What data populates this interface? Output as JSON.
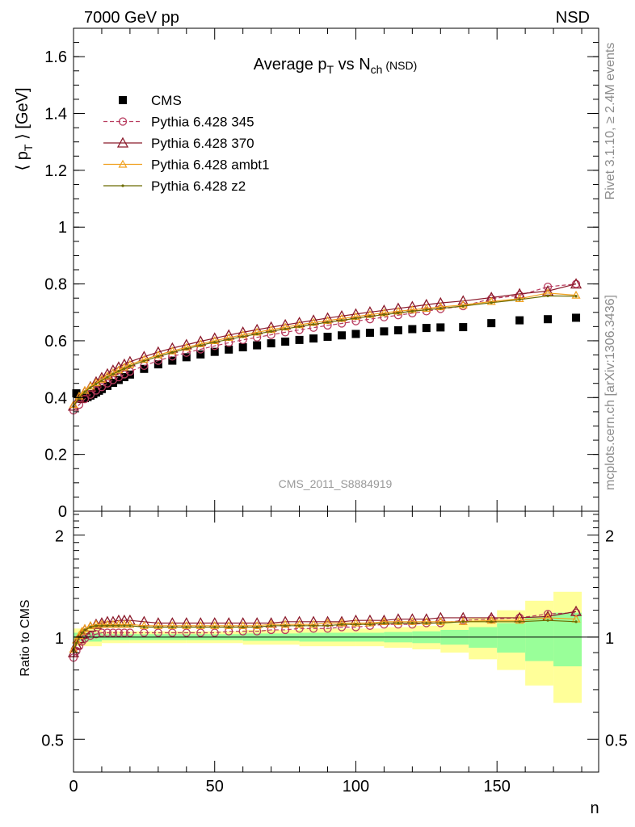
{
  "header": {
    "left": "7000 GeV pp",
    "right": "NSD"
  },
  "side_text": {
    "rivet": "Rivet 3.1.10, ≥ 2.4M events",
    "mcplots": "mcplots.cern.ch [arXiv:1306.3436]"
  },
  "chart_data": [
    {
      "type": "scatter",
      "title": "Average p_T vs N_ch (NSD)",
      "title_parts": {
        "main": "Average p",
        "sub1": "T",
        "mid": " vs N",
        "sub2": "ch",
        "tail": " (NSD)"
      },
      "ylabel": "⟨ p_T ⟩ [GeV]",
      "ylabel_parts": {
        "open": "⟨ p",
        "sub": "T",
        "close": " ⟩ [GeV]"
      },
      "xlabel": "n",
      "watermark": "CMS_2011_S8884919",
      "xlim": [
        0,
        186
      ],
      "ylim": [
        0,
        1.7
      ],
      "yticks": [
        "0",
        "0.2",
        "0.4",
        "0.6",
        "0.8",
        "1",
        "1.2",
        "1.4",
        "1.6"
      ],
      "xticks": [
        "0",
        "50",
        "100",
        "150"
      ],
      "legend_position": "top-left",
      "series": [
        {
          "name": "CMS",
          "color": "#000000",
          "marker": "filled-square",
          "x": [
            1,
            2,
            3,
            4,
            5,
            6,
            7,
            8,
            9,
            10,
            12,
            14,
            16,
            18,
            20,
            25,
            30,
            35,
            40,
            45,
            50,
            55,
            60,
            65,
            70,
            75,
            80,
            85,
            90,
            95,
            100,
            105,
            110,
            115,
            120,
            125,
            130,
            138,
            148,
            158,
            168,
            178
          ],
          "y": [
            0.415,
            0.4,
            0.395,
            0.398,
            0.402,
            0.407,
            0.412,
            0.418,
            0.424,
            0.43,
            0.441,
            0.452,
            0.462,
            0.472,
            0.481,
            0.501,
            0.517,
            0.53,
            0.542,
            0.552,
            0.561,
            0.569,
            0.577,
            0.584,
            0.591,
            0.597,
            0.603,
            0.608,
            0.614,
            0.619,
            0.624,
            0.628,
            0.633,
            0.637,
            0.641,
            0.645,
            0.647,
            0.648,
            0.662,
            0.672,
            0.676,
            0.681
          ]
        },
        {
          "name": "Pythia 6.428 345",
          "color": "#b83b5e",
          "marker": "open-circle",
          "dashed": true,
          "x": [
            0,
            2,
            4,
            6,
            8,
            10,
            12,
            14,
            16,
            18,
            20,
            25,
            30,
            35,
            40,
            45,
            50,
            55,
            60,
            65,
            70,
            75,
            80,
            85,
            90,
            95,
            100,
            105,
            110,
            115,
            120,
            125,
            130,
            138,
            148,
            158,
            168,
            178
          ],
          "y": [
            0.355,
            0.375,
            0.395,
            0.41,
            0.425,
            0.437,
            0.45,
            0.462,
            0.472,
            0.482,
            0.492,
            0.512,
            0.53,
            0.545,
            0.558,
            0.57,
            0.582,
            0.593,
            0.603,
            0.612,
            0.621,
            0.63,
            0.638,
            0.646,
            0.654,
            0.661,
            0.669,
            0.676,
            0.683,
            0.69,
            0.697,
            0.704,
            0.712,
            0.722,
            0.748,
            0.76,
            0.79,
            0.8
          ]
        },
        {
          "name": "Pythia 6.428 370",
          "color": "#8b1a2b",
          "marker": "open-triangle",
          "x": [
            0,
            2,
            4,
            6,
            8,
            10,
            12,
            14,
            16,
            18,
            20,
            25,
            30,
            35,
            40,
            45,
            50,
            55,
            60,
            65,
            70,
            75,
            80,
            85,
            90,
            95,
            100,
            105,
            110,
            115,
            120,
            125,
            130,
            138,
            148,
            158,
            168,
            178
          ],
          "y": [
            0.37,
            0.398,
            0.42,
            0.438,
            0.455,
            0.47,
            0.483,
            0.496,
            0.507,
            0.517,
            0.526,
            0.544,
            0.56,
            0.574,
            0.586,
            0.598,
            0.609,
            0.62,
            0.63,
            0.639,
            0.648,
            0.656,
            0.664,
            0.672,
            0.68,
            0.687,
            0.694,
            0.701,
            0.707,
            0.714,
            0.72,
            0.727,
            0.733,
            0.74,
            0.752,
            0.765,
            0.775,
            0.8
          ]
        },
        {
          "name": "Pythia 6.428 ambt1",
          "color": "#f0a01e",
          "marker": "open-triangle-small",
          "x": [
            0,
            2,
            4,
            6,
            8,
            10,
            12,
            14,
            16,
            18,
            20,
            25,
            30,
            35,
            40,
            45,
            50,
            55,
            60,
            65,
            70,
            75,
            80,
            85,
            90,
            95,
            100,
            105,
            110,
            115,
            120,
            125,
            130,
            138,
            148,
            158,
            168,
            178
          ],
          "y": [
            0.375,
            0.405,
            0.425,
            0.44,
            0.452,
            0.464,
            0.476,
            0.487,
            0.497,
            0.507,
            0.516,
            0.534,
            0.55,
            0.564,
            0.577,
            0.589,
            0.6,
            0.611,
            0.621,
            0.63,
            0.639,
            0.648,
            0.656,
            0.664,
            0.671,
            0.678,
            0.685,
            0.692,
            0.698,
            0.704,
            0.709,
            0.714,
            0.719,
            0.726,
            0.738,
            0.748,
            0.768,
            0.76
          ]
        },
        {
          "name": "Pythia 6.428 z2",
          "color": "#6b6b00",
          "marker": "small-dot",
          "x": [
            0,
            2,
            4,
            6,
            8,
            10,
            12,
            14,
            16,
            18,
            20,
            25,
            30,
            35,
            40,
            45,
            50,
            55,
            60,
            65,
            70,
            75,
            80,
            85,
            90,
            95,
            100,
            105,
            110,
            115,
            120,
            125,
            130,
            138,
            148,
            158,
            168,
            178
          ],
          "y": [
            0.37,
            0.4,
            0.42,
            0.435,
            0.448,
            0.46,
            0.472,
            0.483,
            0.493,
            0.502,
            0.511,
            0.529,
            0.545,
            0.559,
            0.572,
            0.584,
            0.595,
            0.605,
            0.615,
            0.624,
            0.633,
            0.642,
            0.65,
            0.658,
            0.665,
            0.672,
            0.679,
            0.686,
            0.692,
            0.698,
            0.704,
            0.709,
            0.714,
            0.722,
            0.734,
            0.745,
            0.758,
            0.757
          ]
        }
      ]
    },
    {
      "type": "scatter",
      "ylabel": "Ratio to CMS",
      "xlabel": "n",
      "xlim": [
        0,
        186
      ],
      "ylim": [
        0.4,
        2.35
      ],
      "log_y": true,
      "yticks": [
        "0.5",
        "1",
        "2"
      ],
      "xticks": [
        "0",
        "50",
        "100",
        "150"
      ],
      "bands": {
        "x_edges": [
          0,
          10,
          20,
          40,
          60,
          80,
          100,
          110,
          120,
          130,
          140,
          150,
          160,
          170,
          180
        ],
        "green_lo": [
          0.97,
          0.98,
          0.98,
          0.98,
          0.975,
          0.97,
          0.97,
          0.965,
          0.96,
          0.95,
          0.93,
          0.9,
          0.85,
          0.82
        ],
        "green_hi": [
          1.03,
          1.02,
          1.02,
          1.02,
          1.025,
          1.03,
          1.03,
          1.035,
          1.04,
          1.05,
          1.07,
          1.1,
          1.15,
          1.18
        ],
        "yellow_lo": [
          0.94,
          0.96,
          0.96,
          0.96,
          0.95,
          0.94,
          0.94,
          0.93,
          0.92,
          0.9,
          0.86,
          0.8,
          0.72,
          0.64
        ],
        "yellow_hi": [
          1.06,
          1.04,
          1.04,
          1.04,
          1.05,
          1.06,
          1.06,
          1.07,
          1.08,
          1.1,
          1.14,
          1.2,
          1.28,
          1.36
        ]
      },
      "series": [
        {
          "name": "Pythia 6.428 345",
          "color": "#b83b5e",
          "marker": "open-circle",
          "dashed": true,
          "x": [
            0,
            1,
            2,
            3,
            4,
            6,
            8,
            10,
            12,
            14,
            16,
            18,
            20,
            25,
            30,
            35,
            40,
            45,
            50,
            55,
            60,
            65,
            70,
            75,
            80,
            85,
            90,
            95,
            100,
            105,
            110,
            115,
            120,
            125,
            130,
            138,
            148,
            158,
            168,
            178
          ],
          "y": [
            0.87,
            0.91,
            0.94,
            0.97,
            0.99,
            1.01,
            1.02,
            1.03,
            1.03,
            1.03,
            1.03,
            1.03,
            1.03,
            1.03,
            1.03,
            1.03,
            1.03,
            1.03,
            1.03,
            1.04,
            1.04,
            1.04,
            1.05,
            1.05,
            1.06,
            1.06,
            1.06,
            1.07,
            1.07,
            1.08,
            1.09,
            1.09,
            1.09,
            1.1,
            1.1,
            1.12,
            1.13,
            1.14,
            1.17,
            1.18
          ]
        },
        {
          "name": "Pythia 6.428 370",
          "color": "#8b1a2b",
          "marker": "open-triangle",
          "x": [
            0,
            1,
            2,
            3,
            4,
            6,
            8,
            10,
            12,
            14,
            16,
            18,
            20,
            25,
            30,
            35,
            40,
            45,
            50,
            55,
            60,
            65,
            70,
            75,
            80,
            85,
            90,
            95,
            100,
            105,
            110,
            115,
            120,
            125,
            130,
            138,
            148,
            158,
            168,
            178
          ],
          "y": [
            0.9,
            0.95,
            0.99,
            1.02,
            1.05,
            1.07,
            1.09,
            1.1,
            1.11,
            1.11,
            1.12,
            1.12,
            1.12,
            1.11,
            1.1,
            1.1,
            1.1,
            1.1,
            1.1,
            1.1,
            1.1,
            1.1,
            1.1,
            1.11,
            1.11,
            1.11,
            1.11,
            1.11,
            1.12,
            1.12,
            1.12,
            1.13,
            1.13,
            1.13,
            1.14,
            1.14,
            1.14,
            1.14,
            1.15,
            1.19
          ]
        },
        {
          "name": "Pythia 6.428 ambt1",
          "color": "#f0a01e",
          "marker": "open-triangle-small",
          "x": [
            0,
            1,
            2,
            3,
            4,
            6,
            8,
            10,
            12,
            14,
            16,
            18,
            20,
            25,
            30,
            35,
            40,
            45,
            50,
            55,
            60,
            65,
            70,
            75,
            80,
            85,
            90,
            95,
            100,
            105,
            110,
            115,
            120,
            125,
            130,
            138,
            148,
            158,
            168,
            178
          ],
          "y": [
            0.92,
            0.98,
            1.01,
            1.04,
            1.06,
            1.08,
            1.09,
            1.09,
            1.09,
            1.09,
            1.09,
            1.09,
            1.09,
            1.08,
            1.08,
            1.08,
            1.08,
            1.08,
            1.08,
            1.08,
            1.08,
            1.08,
            1.09,
            1.09,
            1.09,
            1.09,
            1.1,
            1.1,
            1.1,
            1.1,
            1.11,
            1.11,
            1.11,
            1.11,
            1.11,
            1.11,
            1.12,
            1.12,
            1.14,
            1.13
          ]
        },
        {
          "name": "Pythia 6.428 z2",
          "color": "#6b6b00",
          "marker": "small-dot",
          "x": [
            0,
            1,
            2,
            3,
            4,
            6,
            8,
            10,
            12,
            14,
            16,
            18,
            20,
            25,
            30,
            35,
            40,
            45,
            50,
            55,
            60,
            65,
            70,
            75,
            80,
            85,
            90,
            95,
            100,
            105,
            110,
            115,
            120,
            125,
            130,
            138,
            148,
            158,
            168,
            178
          ],
          "y": [
            0.91,
            0.96,
            1.0,
            1.03,
            1.05,
            1.07,
            1.08,
            1.08,
            1.08,
            1.08,
            1.08,
            1.08,
            1.08,
            1.07,
            1.07,
            1.07,
            1.07,
            1.07,
            1.07,
            1.07,
            1.07,
            1.07,
            1.08,
            1.08,
            1.08,
            1.08,
            1.08,
            1.09,
            1.09,
            1.09,
            1.1,
            1.1,
            1.1,
            1.1,
            1.1,
            1.11,
            1.11,
            1.11,
            1.12,
            1.11
          ]
        }
      ]
    }
  ]
}
